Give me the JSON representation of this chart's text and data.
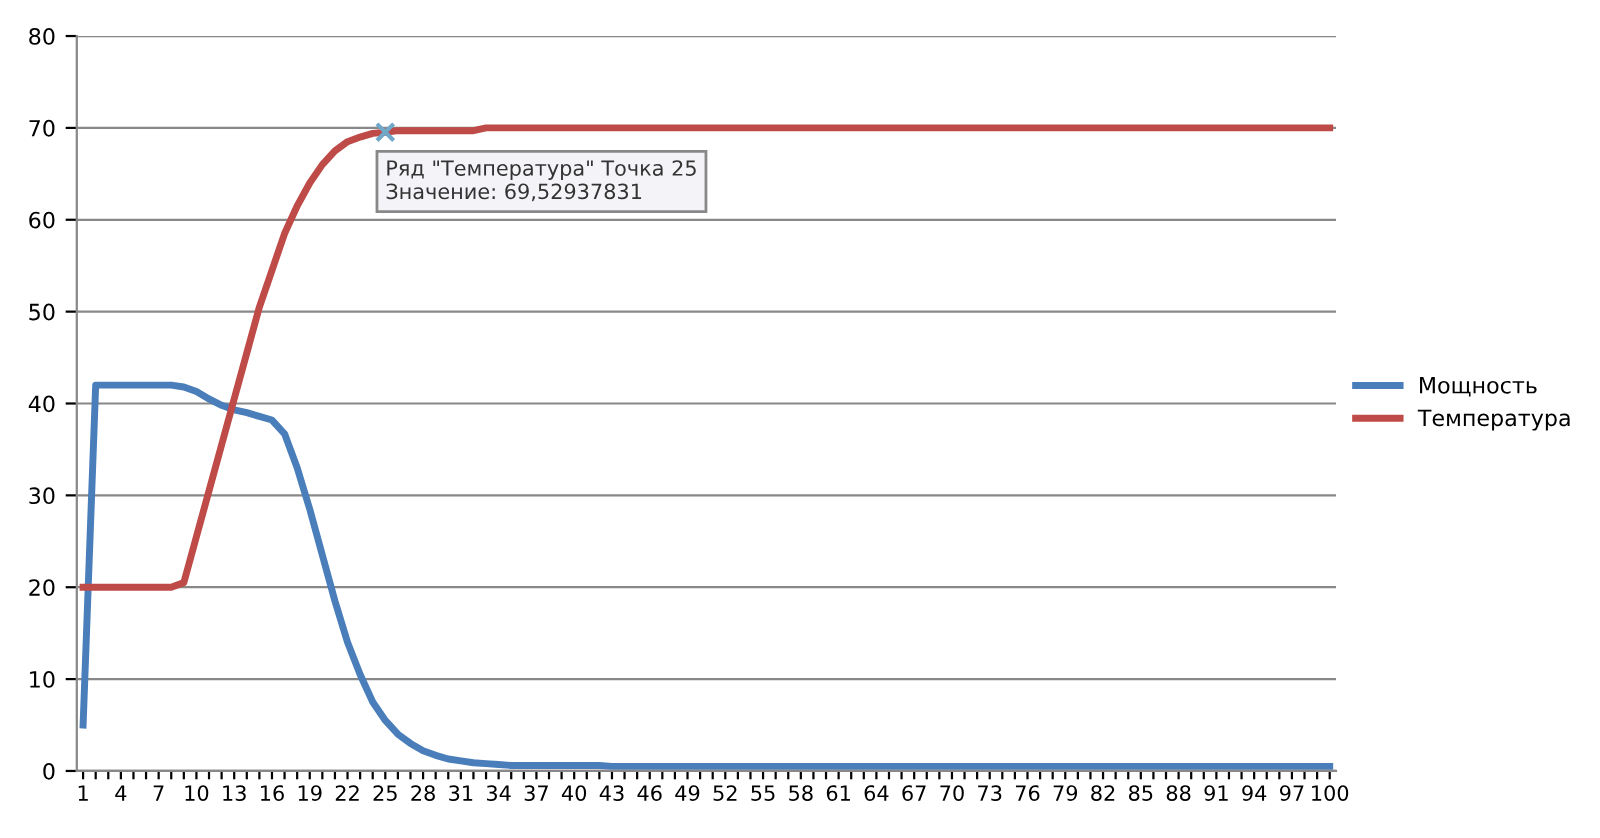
{
  "chart_data": {
    "type": "line",
    "categories": [
      "1",
      null,
      null,
      "4",
      null,
      null,
      "7",
      null,
      null,
      "10",
      null,
      null,
      "13",
      null,
      null,
      "16",
      null,
      null,
      "19",
      null,
      null,
      "22",
      null,
      null,
      "25",
      null,
      null,
      "28",
      null,
      null,
      "31",
      null,
      null,
      "34",
      null,
      null,
      "37",
      null,
      null,
      "40",
      null,
      null,
      "43",
      null,
      null,
      "46",
      null,
      null,
      "49",
      null,
      null,
      "52",
      null,
      null,
      "55",
      null,
      null,
      "58",
      null,
      null,
      "61",
      null,
      null,
      "64",
      null,
      null,
      "67",
      null,
      null,
      "70",
      null,
      null,
      "73",
      null,
      null,
      "76",
      null,
      null,
      "79",
      null,
      null,
      "82",
      null,
      null,
      "85",
      null,
      null,
      "88",
      null,
      null,
      "91",
      null,
      null,
      "94",
      null,
      null,
      "97",
      null,
      null,
      "100"
    ],
    "series": [
      {
        "name": "Мощность",
        "color": "#4a7ebb",
        "values": [
          5,
          42,
          42,
          42,
          42,
          42,
          42,
          42,
          41.8,
          41.3,
          40.5,
          39.8,
          39.3,
          39,
          38.6,
          38.2,
          36.7,
          33,
          28.5,
          23.5,
          18.5,
          14,
          10.5,
          7.5,
          5.5,
          4,
          3,
          2.2,
          1.7,
          1.3,
          1.1,
          0.9,
          0.8,
          0.7,
          0.6,
          0.6,
          0.6,
          0.6,
          0.6,
          0.6,
          0.6,
          0.6,
          0.5,
          0.5,
          0.5,
          0.5,
          0.5,
          0.5,
          0.5,
          0.5,
          0.5,
          0.5,
          0.5,
          0.5,
          0.5,
          0.5,
          0.5,
          0.5,
          0.5,
          0.5,
          0.5,
          0.5,
          0.5,
          0.5,
          0.5,
          0.5,
          0.5,
          0.5,
          0.5,
          0.5,
          0.5,
          0.5,
          0.5,
          0.5,
          0.5,
          0.5,
          0.5,
          0.5,
          0.5,
          0.5,
          0.5,
          0.5,
          0.5,
          0.5,
          0.5,
          0.5,
          0.5,
          0.5,
          0.5,
          0.5,
          0.5,
          0.5,
          0.5,
          0.5,
          0.5,
          0.5,
          0.5,
          0.5,
          0.5,
          0.5
        ]
      },
      {
        "name": "Температура",
        "color": "#be4b48",
        "values": [
          20,
          20,
          20,
          20,
          20,
          20,
          20,
          20,
          20.5,
          25.5,
          30.5,
          35.5,
          40.5,
          45.5,
          50.5,
          54.5,
          58.5,
          61.5,
          64,
          66,
          67.5,
          68.5,
          69,
          69.4,
          69.53,
          69.7,
          69.7,
          69.7,
          69.7,
          69.7,
          69.7,
          69.7,
          70,
          70,
          70,
          70,
          70,
          70,
          70,
          70,
          70,
          70,
          70,
          70,
          70,
          70,
          70,
          70,
          70,
          70,
          70,
          70,
          70,
          70,
          70,
          70,
          70,
          70,
          70,
          70,
          70,
          70,
          70,
          70,
          70,
          70,
          70,
          70,
          70,
          70,
          70,
          70,
          70,
          70,
          70,
          70,
          70,
          70,
          70,
          70,
          70,
          70,
          70,
          70,
          70,
          70,
          70,
          70,
          70,
          70,
          70,
          70,
          70,
          70,
          70,
          70,
          70,
          70,
          70,
          70
        ]
      }
    ],
    "ylim": [
      0,
      80
    ],
    "yticks": [
      0,
      10,
      20,
      30,
      40,
      50,
      60,
      70,
      80
    ],
    "grid": "y",
    "legend": "right",
    "marker": "none",
    "line_style": "solid",
    "annotations": [
      {
        "text": "Ряд \"Температура\" Точка 25\nЗначение: 69,52937831",
        "x": "25",
        "y": 69.53
      }
    ]
  }
}
